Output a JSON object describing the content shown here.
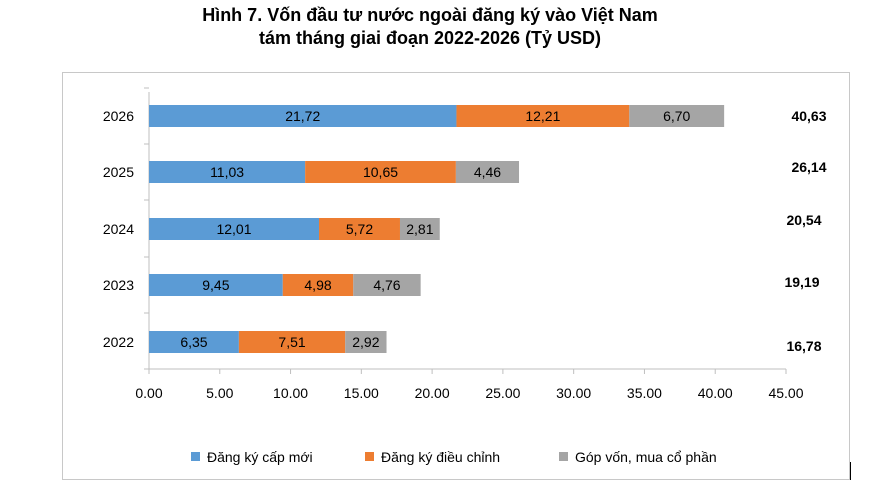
{
  "title_line1": "Hình 7. Vốn đầu tư nước ngoài đăng ký vào Việt Nam",
  "title_line2": "tám tháng giai đoạn 2022-2026 (Tỷ USD)",
  "chart_data": {
    "type": "bar",
    "orientation": "horizontal",
    "stacked": true,
    "categories": [
      "2026",
      "2025",
      "2024",
      "2023",
      "2022"
    ],
    "series": [
      {
        "name": "Đăng ký cấp mới",
        "color": "#5b9bd5",
        "values": [
          21.72,
          11.03,
          12.01,
          9.45,
          6.35
        ],
        "labels": [
          "21,72",
          "11,03",
          "12,01",
          "9,45",
          "6,35"
        ]
      },
      {
        "name": "Đăng ký điều chỉnh",
        "color": "#ed7d31",
        "values": [
          12.21,
          10.65,
          5.72,
          4.98,
          7.51
        ],
        "labels": [
          "12,21",
          "10,65",
          "5,72",
          "4,98",
          "7,51"
        ]
      },
      {
        "name": "Góp vốn, mua cổ phần",
        "color": "#a5a5a5",
        "values": [
          6.7,
          4.46,
          2.81,
          4.76,
          2.92
        ],
        "labels": [
          "6,70",
          "4,46",
          "2,81",
          "4,76",
          "2,92"
        ]
      }
    ],
    "totals": [
      "40,63",
      "26,14",
      "20,54",
      "19,19",
      "16,78"
    ],
    "xlim": [
      0,
      45
    ],
    "xticks": [
      "0.00",
      "5.00",
      "10.00",
      "15.00",
      "20.00",
      "25.00",
      "30.00",
      "35.00",
      "40.00",
      "45.00"
    ],
    "gridlines": false,
    "legend_position": "bottom"
  }
}
